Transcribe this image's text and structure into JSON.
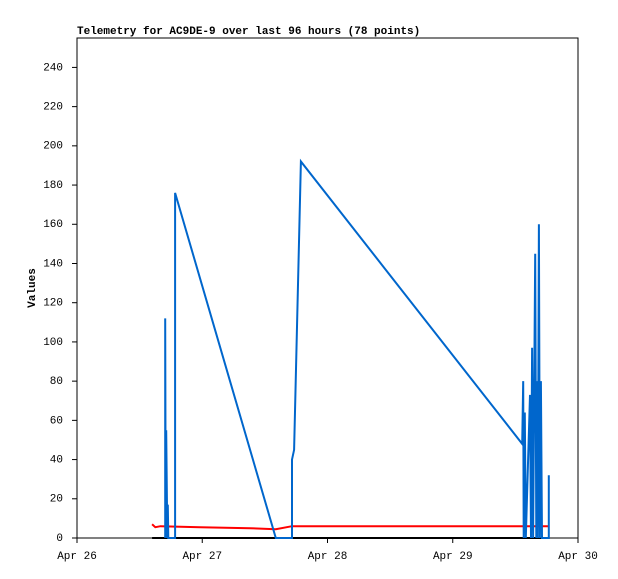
{
  "chart_data": {
    "type": "line",
    "title": "Telemetry for AC9DE-9 over last 96 hours (78 points)",
    "y_label": "Values",
    "xlim": [
      0,
      96
    ],
    "xticks": [
      {
        "value": 0,
        "label": "Apr 26"
      },
      {
        "value": 24,
        "label": "Apr 27"
      },
      {
        "value": 48,
        "label": "Apr 28"
      },
      {
        "value": 72,
        "label": "Apr 29"
      },
      {
        "value": 96,
        "label": "Apr 30"
      }
    ],
    "ylim": [
      0,
      255
    ],
    "yticks": [
      0,
      20,
      40,
      60,
      80,
      100,
      120,
      140,
      160,
      180,
      200,
      220,
      240
    ],
    "series": [
      {
        "color": "#000000",
        "x": [
          14.4,
          90.4
        ],
        "values": [
          0,
          0
        ]
      },
      {
        "color": "#ff0000",
        "x": [
          14.4,
          15.0,
          16.0,
          23.6,
          33.2,
          38.1,
          41.2,
          90.4
        ],
        "values": [
          7,
          5.5,
          6,
          5.5,
          5,
          4.5,
          6,
          6
        ]
      },
      {
        "color": "#0066cc",
        "x": [
          16.9,
          16.9,
          17.0,
          17.1,
          17.3,
          17.4,
          17.5,
          18.8,
          18.8,
          38.1,
          41.2,
          41.2,
          41.6,
          42.9,
          85.3,
          85.5,
          85.6,
          85.8,
          86.0,
          86.8,
          87.0,
          87.2,
          87.4,
          87.8,
          88.0,
          88.1,
          88.3,
          88.5,
          88.7,
          88.9,
          89.1,
          90.4,
          90.4
        ],
        "values": [
          0,
          112,
          0,
          55,
          0,
          17,
          0,
          0,
          176,
          0,
          0,
          40,
          45,
          192,
          48,
          80,
          0,
          64,
          0,
          73,
          0,
          97,
          0,
          145,
          0,
          80,
          0,
          160,
          0,
          80,
          0,
          0,
          32
        ]
      }
    ]
  }
}
